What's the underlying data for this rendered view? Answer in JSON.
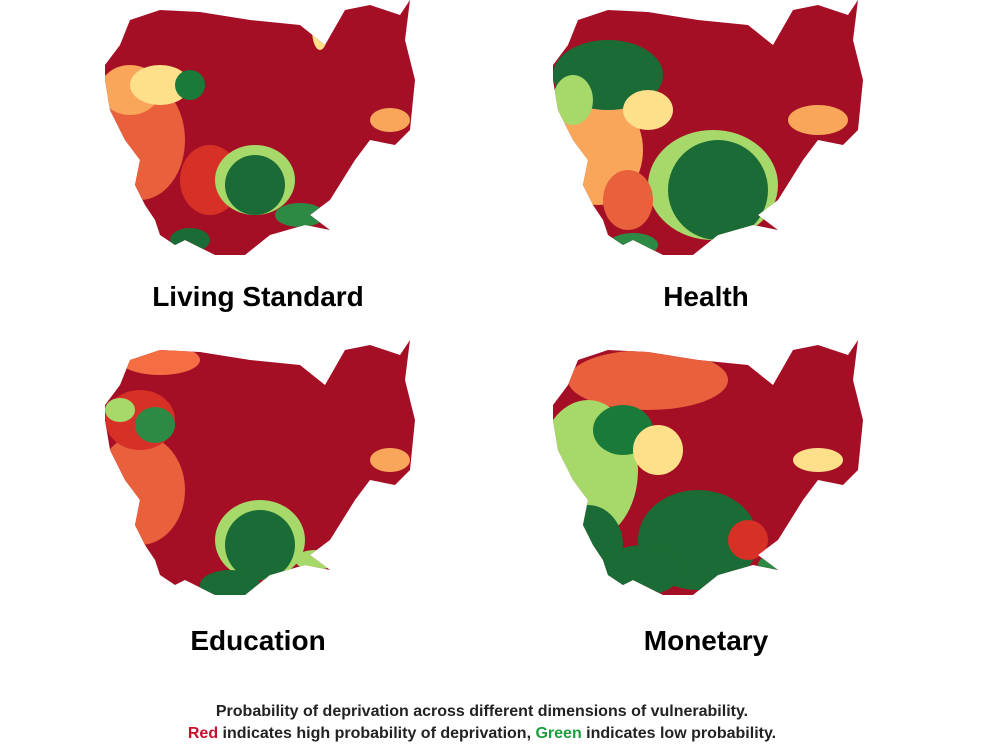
{
  "panels": [
    {
      "title": "Living Standard"
    },
    {
      "title": "Health"
    },
    {
      "title": "Education"
    },
    {
      "title": "Monetary"
    }
  ],
  "caption": {
    "line1": "Probability of deprivation across different dimensions of vulnerability.",
    "line2": [
      "Red",
      " indicates high probability of deprivation, ",
      "Green",
      " indicates low probability."
    ]
  }
}
